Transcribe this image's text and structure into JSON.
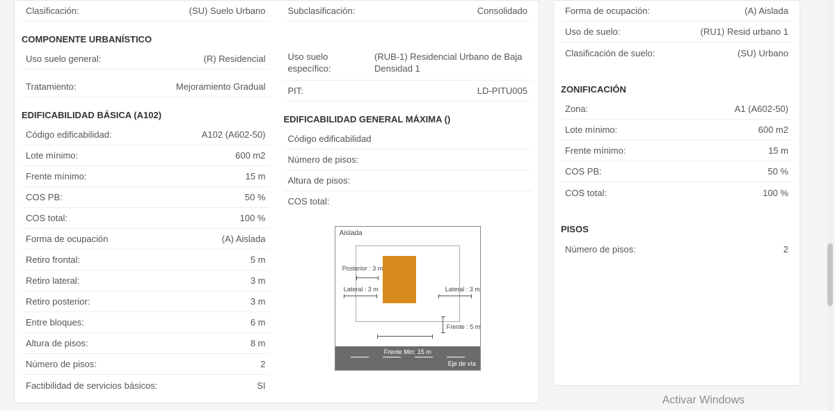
{
  "left": {
    "clasificacion": {
      "label": "Clasificación:",
      "value": "(SU) Suelo Urbano"
    },
    "componente_title": "COMPONENTE URBANÍSTICO",
    "uso_general": {
      "label": "Uso suelo general:",
      "value": "(R) Residencial"
    },
    "tratamiento": {
      "label": "Tratamiento:",
      "value": "Mejoramiento Gradual"
    },
    "edif_basica_title": "EDIFICABILIDAD BÁSICA (A102)",
    "basica": [
      {
        "label": "Código edificabilidad:",
        "value": "A102 (A602-50)"
      },
      {
        "label": "Lote mínimo:",
        "value": "600 m2"
      },
      {
        "label": "Frente mínimo:",
        "value": "15 m"
      },
      {
        "label": "COS PB:",
        "value": "50 %"
      },
      {
        "label": "COS total:",
        "value": "100 %"
      },
      {
        "label": "Forma de ocupación",
        "value": "(A) Aislada"
      },
      {
        "label": "Retiro frontal:",
        "value": "5 m"
      },
      {
        "label": "Retiro lateral:",
        "value": "3 m"
      },
      {
        "label": "Retiro posterior:",
        "value": "3 m"
      },
      {
        "label": "Entre bloques:",
        "value": "6 m"
      },
      {
        "label": "Altura de pisos:",
        "value": "8 m"
      },
      {
        "label": "Número de pisos:",
        "value": "2"
      },
      {
        "label": "Factibilidad de servicios básicos:",
        "value": "SI"
      }
    ]
  },
  "mid": {
    "subclas": {
      "label": "Subclasificación:",
      "value": "Consolidado"
    },
    "uso_esp": {
      "label": "Uso suelo específico:",
      "value": "(RUB-1) Residencial Urbano de Baja Densidad 1"
    },
    "pit": {
      "label": "PIT:",
      "value": "LD-PITU005"
    },
    "edif_max_title": "EDIFICABILIDAD GENERAL MÁXIMA ()",
    "max": [
      {
        "label": "Código edificabilidad",
        "value": ""
      },
      {
        "label": "Número de pisos:",
        "value": ""
      },
      {
        "label": "Altura de pisos:",
        "value": ""
      },
      {
        "label": "COS total:",
        "value": ""
      }
    ],
    "diagram": {
      "title": "Aislada",
      "posterior": "Posterior : 3 m",
      "lateral_l": "Lateral : 3 m",
      "lateral_r": "Lateral : 3 m",
      "frente": "Frente : 5 m",
      "frente_min": "Frente Min: 15 m",
      "eje": "Eje de vía",
      "building_color": "#d68b1c"
    }
  },
  "right": {
    "top": [
      {
        "label": "Forma de ocupación:",
        "value": "(A) Aislada"
      },
      {
        "label": "Uso de suelo:",
        "value": "(RU1) Resid urbano 1"
      },
      {
        "label": "Clasificación de suelo:",
        "value": "(SU) Urbano"
      }
    ],
    "zon_title": "ZONIFICACIÓN",
    "zon": [
      {
        "label": "Zona:",
        "value": "A1 (A602-50)"
      },
      {
        "label": "Lote mínimo:",
        "value": "600 m2"
      },
      {
        "label": "Frente mínimo:",
        "value": "15 m"
      },
      {
        "label": "COS PB:",
        "value": "50 %"
      },
      {
        "label": "COS total:",
        "value": "100 %"
      }
    ],
    "pisos_title": "PISOS",
    "pisos": [
      {
        "label": "Número de pisos:",
        "value": "2"
      }
    ]
  },
  "watermark": "Activar Windows"
}
